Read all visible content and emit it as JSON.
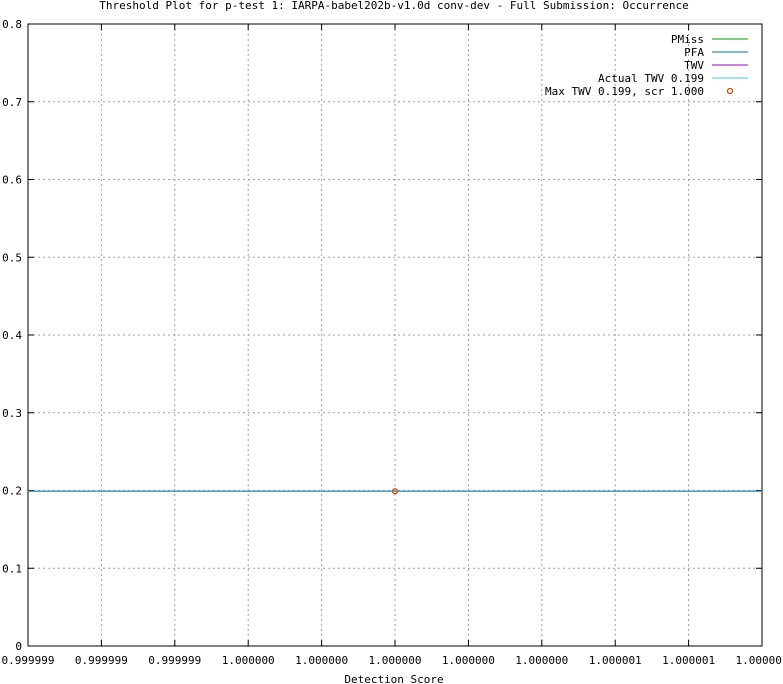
{
  "chart_data": {
    "type": "line",
    "title": "Threshold Plot for p-test 1: IARPA-babel202b-v1.0d conv-dev - Full Submission: Occurrence",
    "xlabel": "Detection Score",
    "ylabel": "",
    "x_tick_labels": [
      "0.999999",
      "0.999999",
      "0.999999",
      "1.000000",
      "1.000000",
      "1.000000",
      "1.000000",
      "1.000000",
      "1.000001",
      "1.000001",
      "1.000001"
    ],
    "y_tick_labels": [
      "0",
      "0.1",
      "0.2",
      "0.3",
      "0.4",
      "0.5",
      "0.6",
      "0.7",
      "0.8"
    ],
    "xlim": [
      0.9999992,
      1.0000012
    ],
    "ylim": [
      0,
      0.8
    ],
    "grid": true,
    "legend_position": "top-right",
    "series": [
      {
        "name": "PMiss",
        "color": "#00a000",
        "x": [
          0.9999992,
          1.0000012
        ],
        "y": [
          0.199,
          0.199
        ]
      },
      {
        "name": "PFA",
        "color": "#0070a0",
        "x": [
          0.9999992,
          1.0000012
        ],
        "y": [
          0.199,
          0.199
        ]
      },
      {
        "name": "TWV",
        "color": "#a000c0",
        "x": [
          0.9999992,
          1.0000012
        ],
        "y": [
          0.199,
          0.199
        ]
      },
      {
        "name": "Actual TWV 0.199",
        "color": "#40c8d8",
        "x": [
          0.9999992,
          1.0000012
        ],
        "y": [
          0.199,
          0.199
        ]
      }
    ],
    "points": [
      {
        "name": "Max TWV 0.199, scr 1.000",
        "color": "#d05000",
        "x": 1.0000002,
        "y": 0.199
      }
    ]
  }
}
